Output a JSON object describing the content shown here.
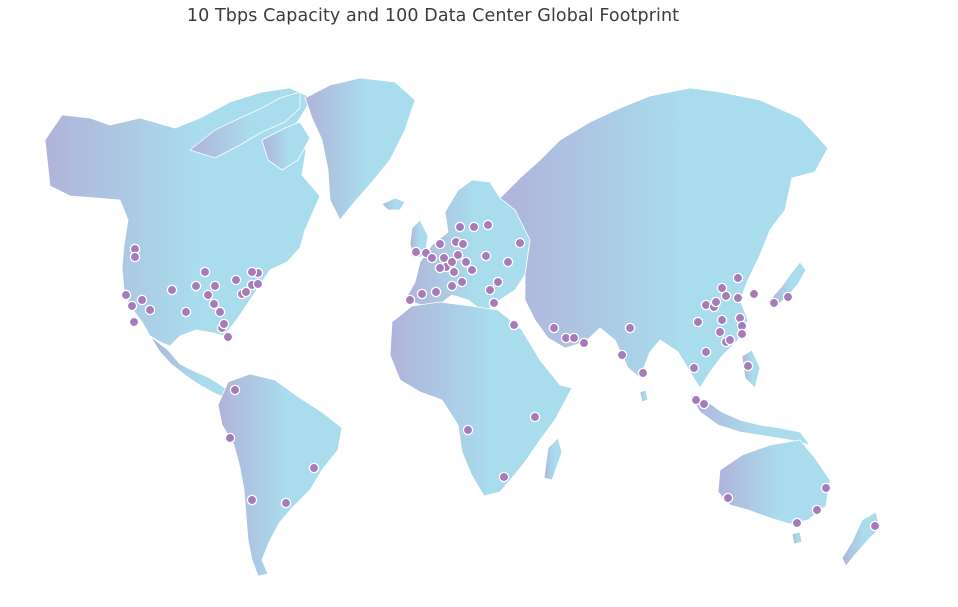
{
  "title": "10 Tbps Capacity and 100 Data Center Global Footprint",
  "colors": {
    "gradient_start": "#b0b3da",
    "gradient_end": "#a9dcec",
    "marker": "#a67bba"
  },
  "map": {
    "projection": "equirectangular-like world map",
    "marker_count_visible": 100
  }
}
